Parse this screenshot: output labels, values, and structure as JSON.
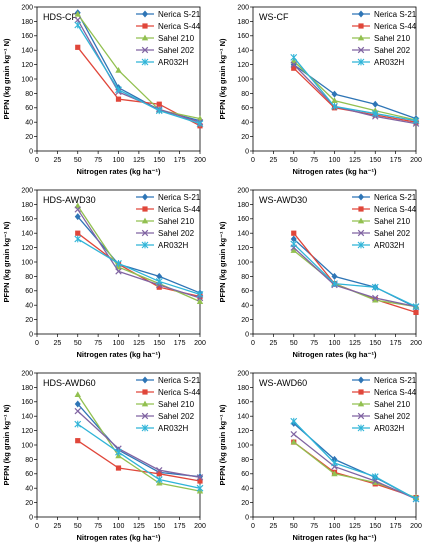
{
  "colors": {
    "Nerica S-21": "#2E75B6",
    "Nerica S-44": "#E0463A",
    "Sahel 210": "#92C050",
    "Sahel 202": "#8064A2",
    "AR032H": "#2FB4D8"
  },
  "markers": {
    "Nerica S-21": "diamond",
    "Nerica S-44": "square",
    "Sahel 210": "triangle",
    "Sahel 202": "x",
    "AR032H": "asterisk"
  },
  "chart_data": [
    {
      "type": "line",
      "title": "HDS-CF",
      "xlabel": "Nitrogen rates (kg ha⁻¹)",
      "ylabel": "PFPN (kg grain kg⁻¹ N)",
      "x": [
        50,
        100,
        150,
        200
      ],
      "xlim": [
        0,
        200
      ],
      "ylim": [
        0,
        200
      ],
      "xticks": [
        0,
        25,
        50,
        75,
        100,
        125,
        150,
        175,
        200
      ],
      "yticks": [
        0,
        20,
        40,
        60,
        80,
        100,
        120,
        140,
        160,
        180,
        200
      ],
      "legend": "top-right",
      "series": [
        {
          "name": "Nerica S-21",
          "values": [
            192,
            88,
            57,
            42
          ]
        },
        {
          "name": "Nerica S-44",
          "values": [
            144,
            72,
            65,
            35
          ]
        },
        {
          "name": "Sahel 210",
          "values": [
            190,
            112,
            57,
            45
          ]
        },
        {
          "name": "Sahel 202",
          "values": [
            182,
            82,
            58,
            40
          ]
        },
        {
          "name": "AR032H",
          "values": [
            175,
            85,
            56,
            38
          ]
        }
      ]
    },
    {
      "type": "line",
      "title": "WS-CF",
      "xlabel": "Nitrogen rates (kg ha⁻¹)",
      "ylabel": "PFPN (kg grain kg⁻¹ N)",
      "x": [
        50,
        100,
        150,
        200
      ],
      "xlim": [
        0,
        200
      ],
      "ylim": [
        0,
        200
      ],
      "xticks": [
        0,
        25,
        50,
        75,
        100,
        125,
        150,
        175,
        200
      ],
      "yticks": [
        0,
        20,
        40,
        60,
        80,
        100,
        120,
        140,
        160,
        180,
        200
      ],
      "legend": "top-right",
      "series": [
        {
          "name": "Nerica S-21",
          "values": [
            120,
            79,
            65,
            45
          ]
        },
        {
          "name": "Nerica S-44",
          "values": [
            115,
            60,
            50,
            40
          ]
        },
        {
          "name": "Sahel 210",
          "values": [
            125,
            70,
            56,
            43
          ]
        },
        {
          "name": "Sahel 202",
          "values": [
            120,
            62,
            48,
            38
          ]
        },
        {
          "name": "AR032H",
          "values": [
            130,
            62,
            52,
            42
          ]
        }
      ]
    },
    {
      "type": "line",
      "title": "HDS-AWD30",
      "xlabel": "Nitrogen rates (kg ha⁻¹)",
      "ylabel": "PFPN (kg grain kg⁻¹ N)",
      "x": [
        50,
        100,
        150,
        200
      ],
      "xlim": [
        0,
        200
      ],
      "ylim": [
        0,
        200
      ],
      "xticks": [
        0,
        25,
        50,
        75,
        100,
        125,
        150,
        175,
        200
      ],
      "yticks": [
        0,
        20,
        40,
        60,
        80,
        100,
        120,
        140,
        160,
        180,
        200
      ],
      "legend": "top-right",
      "series": [
        {
          "name": "Nerica S-21",
          "values": [
            163,
            97,
            80,
            57
          ]
        },
        {
          "name": "Nerica S-44",
          "values": [
            140,
            97,
            65,
            52
          ]
        },
        {
          "name": "Sahel 210",
          "values": [
            178,
            93,
            70,
            45
          ]
        },
        {
          "name": "Sahel 202",
          "values": [
            173,
            87,
            68,
            50
          ]
        },
        {
          "name": "AR032H",
          "values": [
            132,
            98,
            73,
            55
          ]
        }
      ]
    },
    {
      "type": "line",
      "title": "WS-AWD30",
      "xlabel": "Nitrogen rates (kg ha⁻¹)",
      "ylabel": "PFPN (kg grain kg⁻¹ N)",
      "x": [
        50,
        100,
        150,
        200
      ],
      "xlim": [
        0,
        200
      ],
      "ylim": [
        0,
        200
      ],
      "xticks": [
        0,
        25,
        50,
        75,
        100,
        125,
        150,
        175,
        200
      ],
      "yticks": [
        0,
        20,
        40,
        60,
        80,
        100,
        120,
        140,
        160,
        180,
        200
      ],
      "legend": "top-right",
      "series": [
        {
          "name": "Nerica S-21",
          "values": [
            132,
            80,
            65,
            37
          ]
        },
        {
          "name": "Nerica S-44",
          "values": [
            140,
            70,
            48,
            30
          ]
        },
        {
          "name": "Sahel 210",
          "values": [
            116,
            70,
            47,
            38
          ]
        },
        {
          "name": "Sahel 202",
          "values": [
            120,
            68,
            50,
            38
          ]
        },
        {
          "name": "AR032H",
          "values": [
            125,
            70,
            65,
            38
          ]
        }
      ]
    },
    {
      "type": "line",
      "title": "HDS-AWD60",
      "xlabel": "Nitrogen rates (kg ha⁻¹)",
      "ylabel": "PFPN (kg grain kg⁻¹ N)",
      "x": [
        50,
        100,
        150,
        200
      ],
      "xlim": [
        0,
        200
      ],
      "ylim": [
        0,
        200
      ],
      "xticks": [
        0,
        25,
        50,
        75,
        100,
        125,
        150,
        175,
        200
      ],
      "yticks": [
        0,
        20,
        40,
        60,
        80,
        100,
        120,
        140,
        160,
        180,
        200
      ],
      "legend": "top-right",
      "series": [
        {
          "name": "Nerica S-21",
          "values": [
            157,
            93,
            62,
            56
          ]
        },
        {
          "name": "Nerica S-44",
          "values": [
            106,
            68,
            60,
            50
          ]
        },
        {
          "name": "Sahel 210",
          "values": [
            170,
            85,
            47,
            36
          ]
        },
        {
          "name": "Sahel 202",
          "values": [
            147,
            95,
            65,
            55
          ]
        },
        {
          "name": "AR032H",
          "values": [
            129,
            90,
            52,
            40
          ]
        }
      ]
    },
    {
      "type": "line",
      "title": "WS-AWD60",
      "xlabel": "Nitrogen rates (kg ha⁻¹)",
      "ylabel": "PFPN (kg grain kg⁻¹ N)",
      "x": [
        50,
        100,
        150,
        200
      ],
      "xlim": [
        0,
        200
      ],
      "ylim": [
        0,
        200
      ],
      "xticks": [
        0,
        25,
        50,
        75,
        100,
        125,
        150,
        175,
        200
      ],
      "yticks": [
        0,
        20,
        40,
        60,
        80,
        100,
        120,
        140,
        160,
        180,
        200
      ],
      "legend": "top-right",
      "series": [
        {
          "name": "Nerica S-21",
          "values": [
            130,
            80,
            55,
            25
          ]
        },
        {
          "name": "Nerica S-44",
          "values": [
            104,
            62,
            46,
            27
          ]
        },
        {
          "name": "Sahel 210",
          "values": [
            104,
            60,
            48,
            27
          ]
        },
        {
          "name": "Sahel 202",
          "values": [
            115,
            70,
            50,
            25
          ]
        },
        {
          "name": "AR032H",
          "values": [
            133,
            75,
            56,
            25
          ]
        }
      ]
    }
  ]
}
